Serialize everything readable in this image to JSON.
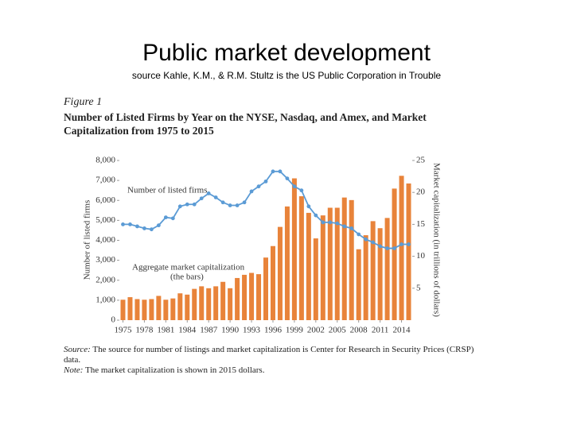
{
  "slide": {
    "title": "Public market development",
    "subtitle": "source Kahle, K.M., & R.M. Stultz is the US Public Corporation in Trouble"
  },
  "figure": {
    "label": "Figure 1",
    "caption": "Number of Listed Firms by Year on the NYSE, Nasdaq, and Amex, and Market Capitalization from 1975 to 2015",
    "source_label": "Source:",
    "source": "The source for number of listings and market capitalization is Center for Research in Security Prices (CRSP) data.",
    "note_label": "Note:",
    "note": "The market capitalization is shown in 2015 dollars."
  },
  "chart_data": {
    "type": "combo",
    "ylabel": "Number of listed firms",
    "y2label": "Market capitalization (in trillions of dollars)",
    "annotations": [
      "Number of listed firms",
      "Aggregate market capitalization",
      "(the bars)"
    ],
    "x": [
      1975,
      1976,
      1977,
      1978,
      1979,
      1980,
      1981,
      1982,
      1983,
      1984,
      1985,
      1986,
      1987,
      1988,
      1989,
      1990,
      1991,
      1992,
      1993,
      1994,
      1995,
      1996,
      1997,
      1998,
      1999,
      2000,
      2001,
      2002,
      2003,
      2004,
      2005,
      2006,
      2007,
      2008,
      2009,
      2010,
      2011,
      2012,
      2013,
      2014,
      2015
    ],
    "xlim": [
      1974.5,
      2015.5
    ],
    "xticks": [
      1975,
      1978,
      1981,
      1984,
      1987,
      1990,
      1993,
      1996,
      1999,
      2002,
      2005,
      2008,
      2011,
      2014
    ],
    "ylim": [
      0,
      8000
    ],
    "yticks": [
      0,
      {
        "value": 1000,
        "label": "1,000"
      },
      {
        "value": 2000,
        "label": "2,000"
      },
      {
        "value": 3000,
        "label": "3,000"
      },
      {
        "value": 4000,
        "label": "4,000"
      },
      {
        "value": 5000,
        "label": "5,000"
      },
      {
        "value": 6000,
        "label": "6,000"
      },
      {
        "value": 7000,
        "label": "7,000"
      },
      {
        "value": 8000,
        "label": "8,000"
      }
    ],
    "y2lim": [
      0,
      25
    ],
    "y2ticks": [
      5,
      10,
      15,
      20,
      25
    ],
    "grid": false,
    "series": [
      {
        "name": "Aggregate market capitalization",
        "type": "bar",
        "axis": "y2",
        "color": "#e8833a",
        "values": [
          3.2,
          3.6,
          3.3,
          3.2,
          3.3,
          3.8,
          3.2,
          3.4,
          4.2,
          4.0,
          4.9,
          5.3,
          5.0,
          5.3,
          6.0,
          5.0,
          6.6,
          7.1,
          7.4,
          7.2,
          9.8,
          11.6,
          14.6,
          17.8,
          22.2,
          19.4,
          16.8,
          12.8,
          16.4,
          17.6,
          17.6,
          19.2,
          18.8,
          11.1,
          13.3,
          15.5,
          14.4,
          16.0,
          20.6,
          22.6,
          21.4
        ]
      },
      {
        "name": "Number of listed firms",
        "type": "line",
        "color": "#5b9bd5",
        "values": [
          4800,
          4800,
          4700,
          4600,
          4550,
          4750,
          5150,
          5100,
          5700,
          5800,
          5800,
          6100,
          6350,
          6150,
          5900,
          5750,
          5750,
          5900,
          6450,
          6700,
          6950,
          7450,
          7450,
          7100,
          6700,
          6500,
          5700,
          5250,
          4900,
          4900,
          4850,
          4700,
          4600,
          4300,
          4050,
          3900,
          3700,
          3600,
          3600,
          3800,
          3800
        ]
      }
    ]
  }
}
